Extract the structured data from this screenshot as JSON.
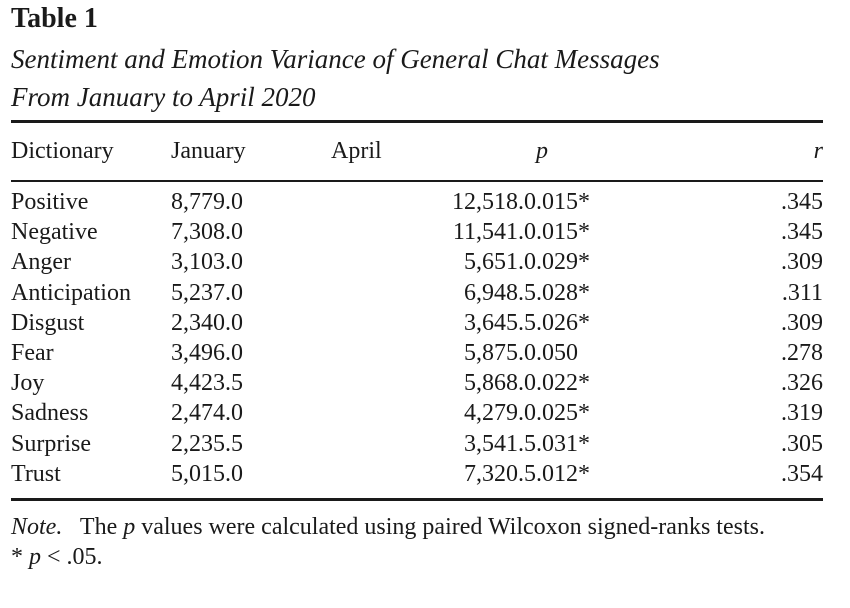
{
  "table": {
    "label": "Table 1",
    "title_line1": "Sentiment and Emotion Variance of General Chat Messages",
    "title_line2": "From January to April 2020",
    "columns": {
      "dictionary": "Dictionary",
      "january": "January",
      "april": "April",
      "p": "p",
      "r": "r"
    },
    "rows": [
      {
        "dictionary": "Positive",
        "january": "8,779.0",
        "april": "12,518.0",
        "p": ".015*",
        "r": ".345"
      },
      {
        "dictionary": "Negative",
        "january": "7,308.0",
        "april": "11,541.0",
        "p": ".015*",
        "r": ".345"
      },
      {
        "dictionary": "Anger",
        "january": "3,103.0",
        "april": "5,651.0",
        "p": ".029*",
        "r": ".309"
      },
      {
        "dictionary": "Anticipation",
        "january": "5,237.0",
        "april": "6,948.5",
        "p": ".028*",
        "r": ".311"
      },
      {
        "dictionary": "Disgust",
        "january": "2,340.0",
        "april": "3,645.5",
        "p": ".026*",
        "r": ".309"
      },
      {
        "dictionary": "Fear",
        "january": "3,496.0",
        "april": "5,875.0",
        "p": ".050",
        "r": ".278"
      },
      {
        "dictionary": "Joy",
        "january": "4,423.5",
        "april": "5,868.0",
        "p": ".022*",
        "r": ".326"
      },
      {
        "dictionary": "Sadness",
        "january": "2,474.0",
        "april": "4,279.0",
        "p": ".025*",
        "r": ".319"
      },
      {
        "dictionary": "Surprise",
        "january": "2,235.5",
        "april": "3,541.5",
        "p": ".031*",
        "r": ".305"
      },
      {
        "dictionary": "Trust",
        "january": "5,015.0",
        "april": "7,320.5",
        "p": ".012*",
        "r": ".354"
      }
    ]
  },
  "notes": {
    "label": "Note.",
    "text_before": "The",
    "p_symbol": "p",
    "text_after": "values were calculated using paired Wilcoxon signed-ranks tests.",
    "sig_prefix": "* ",
    "sig_p": "p",
    "sig_rest": " < .05."
  }
}
